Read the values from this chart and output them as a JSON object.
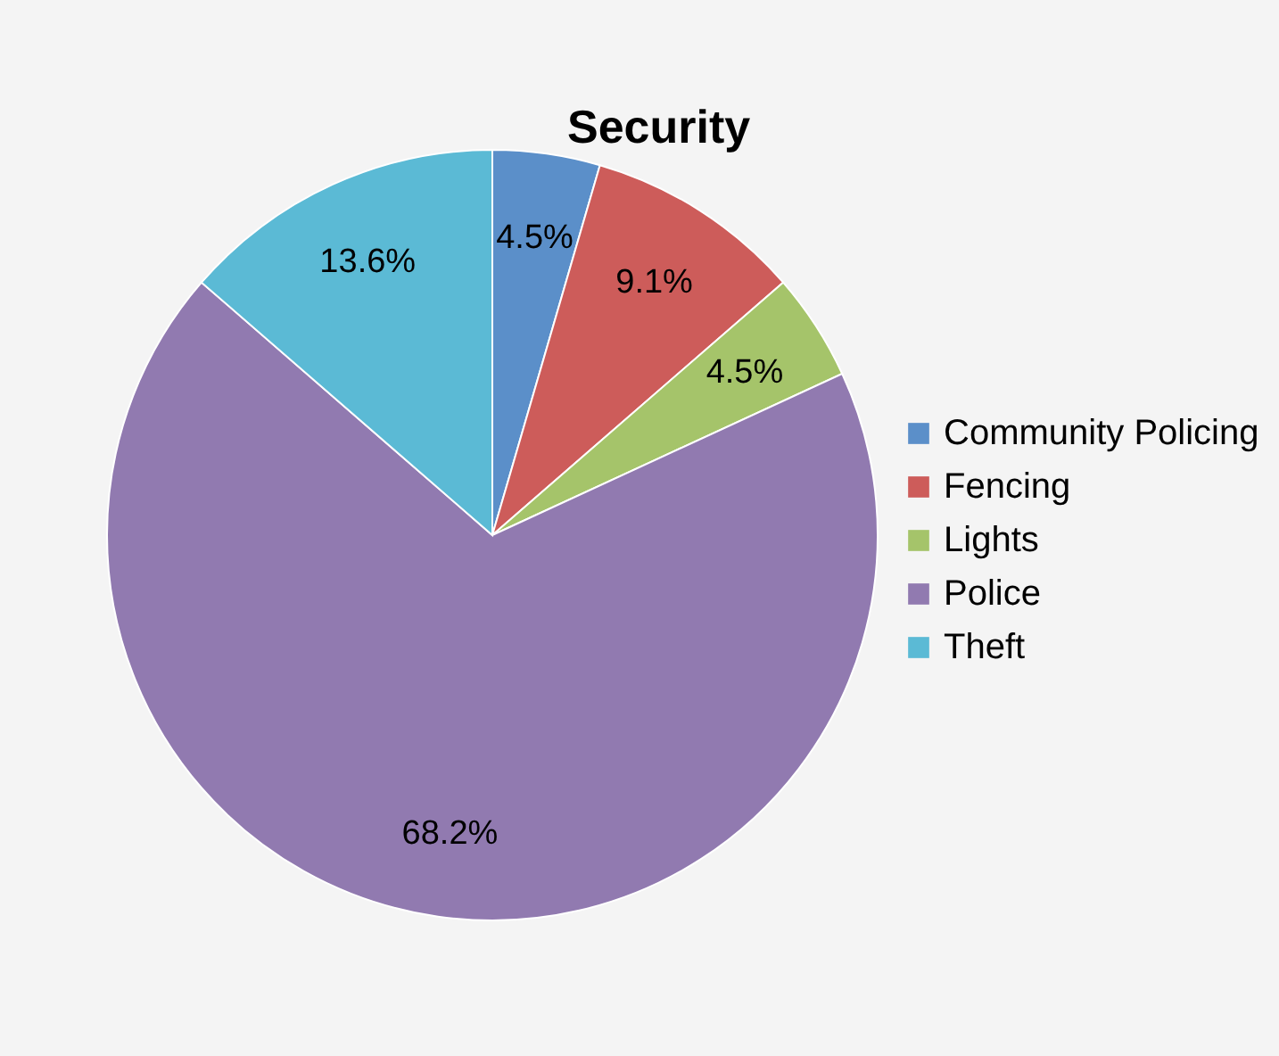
{
  "chart_data": {
    "type": "pie",
    "title": "Security",
    "categories": [
      "Community Policing",
      "Fencing",
      "Lights",
      "Police",
      "Theft"
    ],
    "values": [
      4.5,
      9.1,
      4.5,
      68.2,
      13.6
    ],
    "value_labels": [
      "4.5%",
      "9.1%",
      "4.5%",
      "68.2%",
      "13.6%"
    ],
    "colors": [
      "#5b8fc9",
      "#cd5c5a",
      "#a5c46a",
      "#917ab0",
      "#5bbad5"
    ],
    "legend": "right"
  }
}
